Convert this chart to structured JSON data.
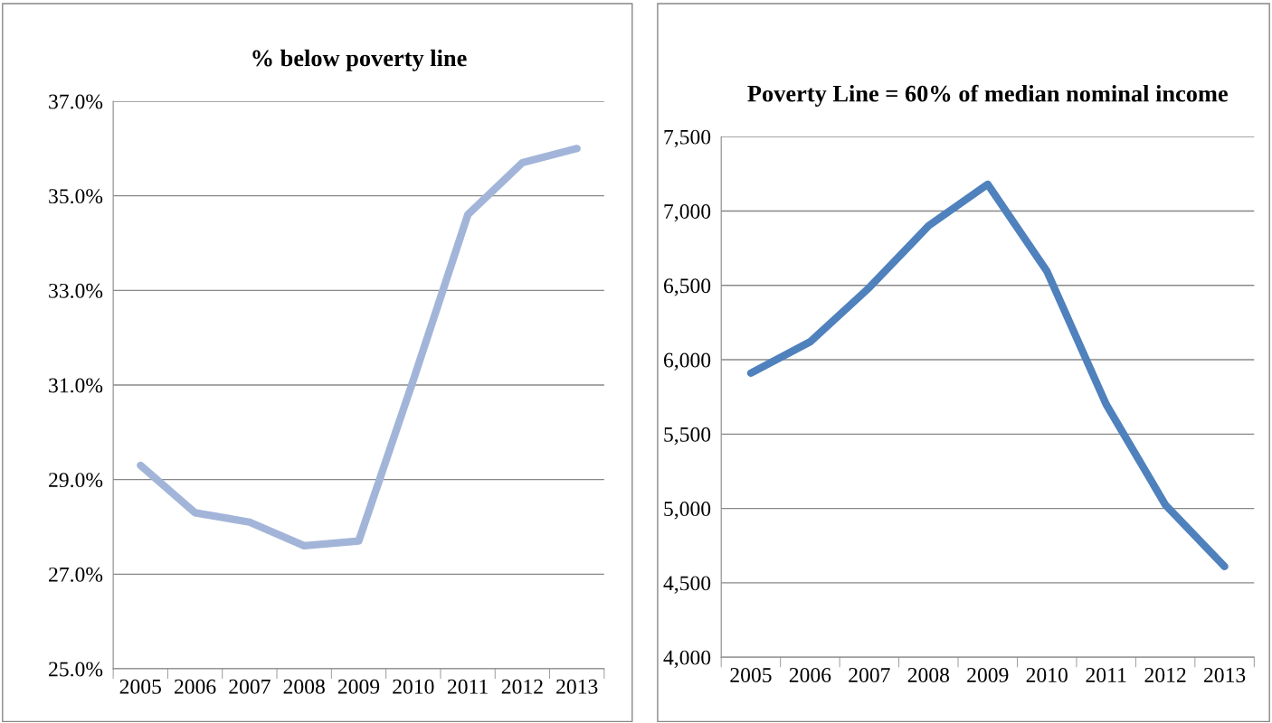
{
  "chart_data": [
    {
      "type": "line",
      "title": "% below poverty line",
      "categories": [
        "2005",
        "2006",
        "2007",
        "2008",
        "2009",
        "2010",
        "2011",
        "2012",
        "2013"
      ],
      "series": [
        {
          "color": "#a2b5d9",
          "values": [
            29.3,
            28.3,
            28.1,
            27.6,
            27.7,
            31.1,
            34.6,
            35.7,
            36.0
          ]
        }
      ],
      "ylim": [
        25,
        37
      ],
      "yticks": [
        {
          "value": 25,
          "label": "25.0%"
        },
        {
          "value": 27,
          "label": "27.0%"
        },
        {
          "value": 29,
          "label": "29.0%"
        },
        {
          "value": 31,
          "label": "31.0%"
        },
        {
          "value": 33,
          "label": "33.0%"
        },
        {
          "value": 35,
          "label": "35.0%"
        },
        {
          "value": 37,
          "label": "37.0%"
        }
      ],
      "grid": "y",
      "marker": "none",
      "line_style": "solid"
    },
    {
      "type": "line",
      "title": "Poverty Line = 60% of median nominal income",
      "categories": [
        "2005",
        "2006",
        "2007",
        "2008",
        "2009",
        "2010",
        "2011",
        "2012",
        "2013"
      ],
      "series": [
        {
          "color": "#4f81bd",
          "values": [
            5910,
            6120,
            6485,
            6900,
            7180,
            6595,
            5700,
            5025,
            4610
          ]
        }
      ],
      "ylim": [
        4000,
        7500
      ],
      "yticks": [
        {
          "value": 4000,
          "label": "4,000"
        },
        {
          "value": 4500,
          "label": "4,500"
        },
        {
          "value": 5000,
          "label": "5,000"
        },
        {
          "value": 5500,
          "label": "5,500"
        },
        {
          "value": 6000,
          "label": "6,000"
        },
        {
          "value": 6500,
          "label": "6,500"
        },
        {
          "value": 7000,
          "label": "7,000"
        },
        {
          "value": 7500,
          "label": "7,500"
        }
      ],
      "grid": "y",
      "marker": "none",
      "line_style": "solid"
    }
  ]
}
